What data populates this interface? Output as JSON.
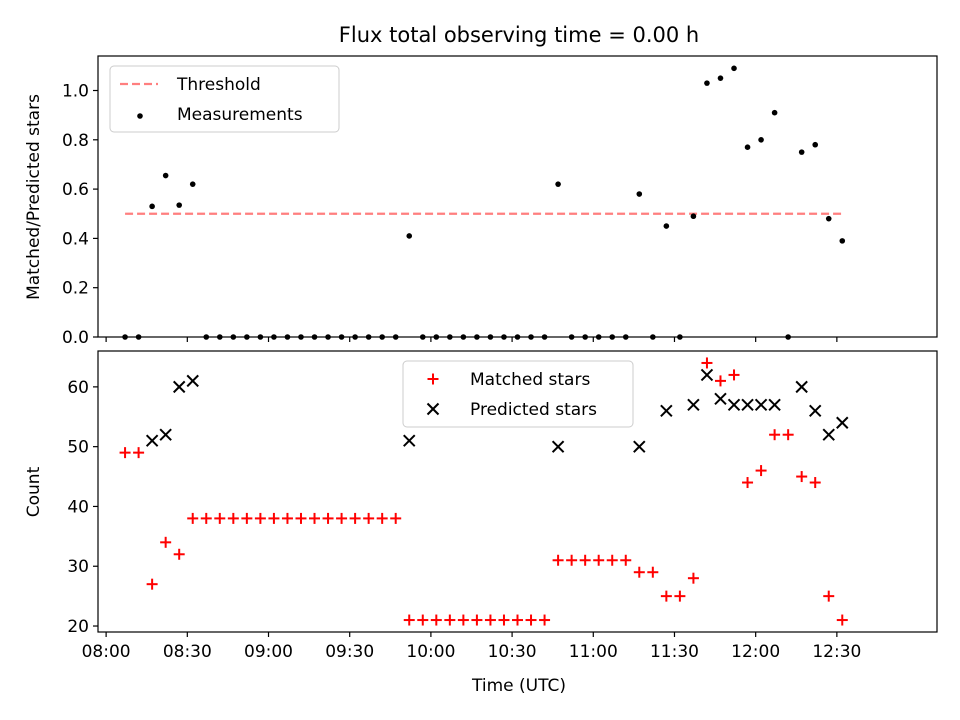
{
  "chart_data": {
    "title": "Flux total observing time = 0.00 h",
    "xlabel": "Time (UTC)",
    "x_unit": "HH:MM",
    "x_range": [
      "07:57",
      "13:07"
    ],
    "x_ticks": [
      "08:00",
      "08:30",
      "09:00",
      "09:30",
      "10:00",
      "10:30",
      "11:00",
      "11:30",
      "12:00",
      "12:30"
    ],
    "x_tick_values": [
      "08:00",
      "08:30",
      "09:00",
      "09:30",
      "10:00",
      "10:30",
      "11:00",
      "11:30",
      "12:00",
      "12:30"
    ],
    "panels": [
      {
        "type": "scatter",
        "ylabel": "Matched/Predicted stars",
        "ylim": [
          0,
          1.14
        ],
        "yticks": [
          "0.0",
          "0.2",
          "0.4",
          "0.6",
          "0.8",
          "1.0"
        ],
        "ytick_values": [
          0,
          0.2,
          0.4,
          0.6,
          0.8,
          1.0
        ],
        "legend_position": "upper-left",
        "grid": false,
        "series": [
          {
            "name": "Threshold",
            "kind": "line",
            "style": "dashed",
            "color": "#ff7f7f",
            "points": [
              [
                "08:07",
                0.5
              ],
              [
                "12:33",
                0.5
              ]
            ]
          },
          {
            "name": "Measurements",
            "kind": "scatter",
            "marker": "dot",
            "color": "#000000",
            "points": [
              [
                "08:07",
                0.0
              ],
              [
                "08:12",
                0.0
              ],
              [
                "08:17",
                0.53
              ],
              [
                "08:22",
                0.655
              ],
              [
                "08:27",
                0.535
              ],
              [
                "08:32",
                0.62
              ],
              [
                "08:37",
                0.0
              ],
              [
                "08:42",
                0.0
              ],
              [
                "08:47",
                0.0
              ],
              [
                "08:52",
                0.0
              ],
              [
                "08:57",
                0.0
              ],
              [
                "09:02",
                0.0
              ],
              [
                "09:07",
                0.0
              ],
              [
                "09:12",
                0.0
              ],
              [
                "09:17",
                0.0
              ],
              [
                "09:22",
                0.0
              ],
              [
                "09:27",
                0.0
              ],
              [
                "09:32",
                0.0
              ],
              [
                "09:37",
                0.0
              ],
              [
                "09:42",
                0.0
              ],
              [
                "09:47",
                0.0
              ],
              [
                "09:52",
                0.41
              ],
              [
                "09:57",
                0.0
              ],
              [
                "10:02",
                0.0
              ],
              [
                "10:07",
                0.0
              ],
              [
                "10:12",
                0.0
              ],
              [
                "10:17",
                0.0
              ],
              [
                "10:22",
                0.0
              ],
              [
                "10:27",
                0.0
              ],
              [
                "10:32",
                0.0
              ],
              [
                "10:37",
                0.0
              ],
              [
                "10:42",
                0.0
              ],
              [
                "10:47",
                0.62
              ],
              [
                "10:52",
                0.0
              ],
              [
                "10:57",
                0.0
              ],
              [
                "11:02",
                0.0
              ],
              [
                "11:07",
                0.0
              ],
              [
                "11:12",
                0.0
              ],
              [
                "11:17",
                0.58
              ],
              [
                "11:22",
                0.0
              ],
              [
                "11:27",
                0.45
              ],
              [
                "11:32",
                0.0
              ],
              [
                "11:37",
                0.49
              ],
              [
                "11:42",
                1.03
              ],
              [
                "11:47",
                1.05
              ],
              [
                "11:52",
                1.09
              ],
              [
                "11:57",
                0.77
              ],
              [
                "12:02",
                0.8
              ],
              [
                "12:07",
                0.91
              ],
              [
                "12:12",
                0.0
              ],
              [
                "12:17",
                0.75
              ],
              [
                "12:22",
                0.78
              ],
              [
                "12:27",
                0.48
              ],
              [
                "12:32",
                0.39
              ]
            ]
          }
        ]
      },
      {
        "type": "scatter",
        "ylabel": "Count",
        "ylim": [
          19,
          66
        ],
        "yticks": [
          "20",
          "30",
          "40",
          "50",
          "60"
        ],
        "ytick_values": [
          20,
          30,
          40,
          50,
          60
        ],
        "legend_position": "upper-center",
        "grid": false,
        "series": [
          {
            "name": "Matched stars",
            "kind": "scatter",
            "marker": "plus",
            "color": "#ff0000",
            "points": [
              [
                "08:07",
                49
              ],
              [
                "08:12",
                49
              ],
              [
                "08:17",
                27
              ],
              [
                "08:22",
                34
              ],
              [
                "08:27",
                32
              ],
              [
                "08:32",
                38
              ],
              [
                "08:37",
                38
              ],
              [
                "08:42",
                38
              ],
              [
                "08:47",
                38
              ],
              [
                "08:52",
                38
              ],
              [
                "08:57",
                38
              ],
              [
                "09:02",
                38
              ],
              [
                "09:07",
                38
              ],
              [
                "09:12",
                38
              ],
              [
                "09:17",
                38
              ],
              [
                "09:22",
                38
              ],
              [
                "09:27",
                38
              ],
              [
                "09:32",
                38
              ],
              [
                "09:37",
                38
              ],
              [
                "09:42",
                38
              ],
              [
                "09:47",
                38
              ],
              [
                "09:52",
                21
              ],
              [
                "09:57",
                21
              ],
              [
                "10:02",
                21
              ],
              [
                "10:07",
                21
              ],
              [
                "10:12",
                21
              ],
              [
                "10:17",
                21
              ],
              [
                "10:22",
                21
              ],
              [
                "10:27",
                21
              ],
              [
                "10:32",
                21
              ],
              [
                "10:37",
                21
              ],
              [
                "10:42",
                21
              ],
              [
                "10:47",
                31
              ],
              [
                "10:52",
                31
              ],
              [
                "10:57",
                31
              ],
              [
                "11:02",
                31
              ],
              [
                "11:07",
                31
              ],
              [
                "11:12",
                31
              ],
              [
                "11:17",
                29
              ],
              [
                "11:22",
                29
              ],
              [
                "11:27",
                25
              ],
              [
                "11:32",
                25
              ],
              [
                "11:37",
                28
              ],
              [
                "11:42",
                64
              ],
              [
                "11:47",
                61
              ],
              [
                "11:52",
                62
              ],
              [
                "11:57",
                44
              ],
              [
                "12:02",
                46
              ],
              [
                "12:07",
                52
              ],
              [
                "12:12",
                52
              ],
              [
                "12:17",
                45
              ],
              [
                "12:22",
                44
              ],
              [
                "12:27",
                25
              ],
              [
                "12:32",
                21
              ]
            ]
          },
          {
            "name": "Predicted stars",
            "kind": "scatter",
            "marker": "x",
            "color": "#000000",
            "points": [
              [
                "08:17",
                51
              ],
              [
                "08:22",
                52
              ],
              [
                "08:27",
                60
              ],
              [
                "08:32",
                61
              ],
              [
                "09:52",
                51
              ],
              [
                "10:47",
                50
              ],
              [
                "11:17",
                50
              ],
              [
                "11:27",
                56
              ],
              [
                "11:37",
                57
              ],
              [
                "11:42",
                62
              ],
              [
                "11:47",
                58
              ],
              [
                "11:52",
                57
              ],
              [
                "11:57",
                57
              ],
              [
                "12:02",
                57
              ],
              [
                "12:07",
                57
              ],
              [
                "12:17",
                60
              ],
              [
                "12:22",
                56
              ],
              [
                "12:27",
                52
              ],
              [
                "12:32",
                54
              ]
            ]
          }
        ]
      }
    ]
  }
}
